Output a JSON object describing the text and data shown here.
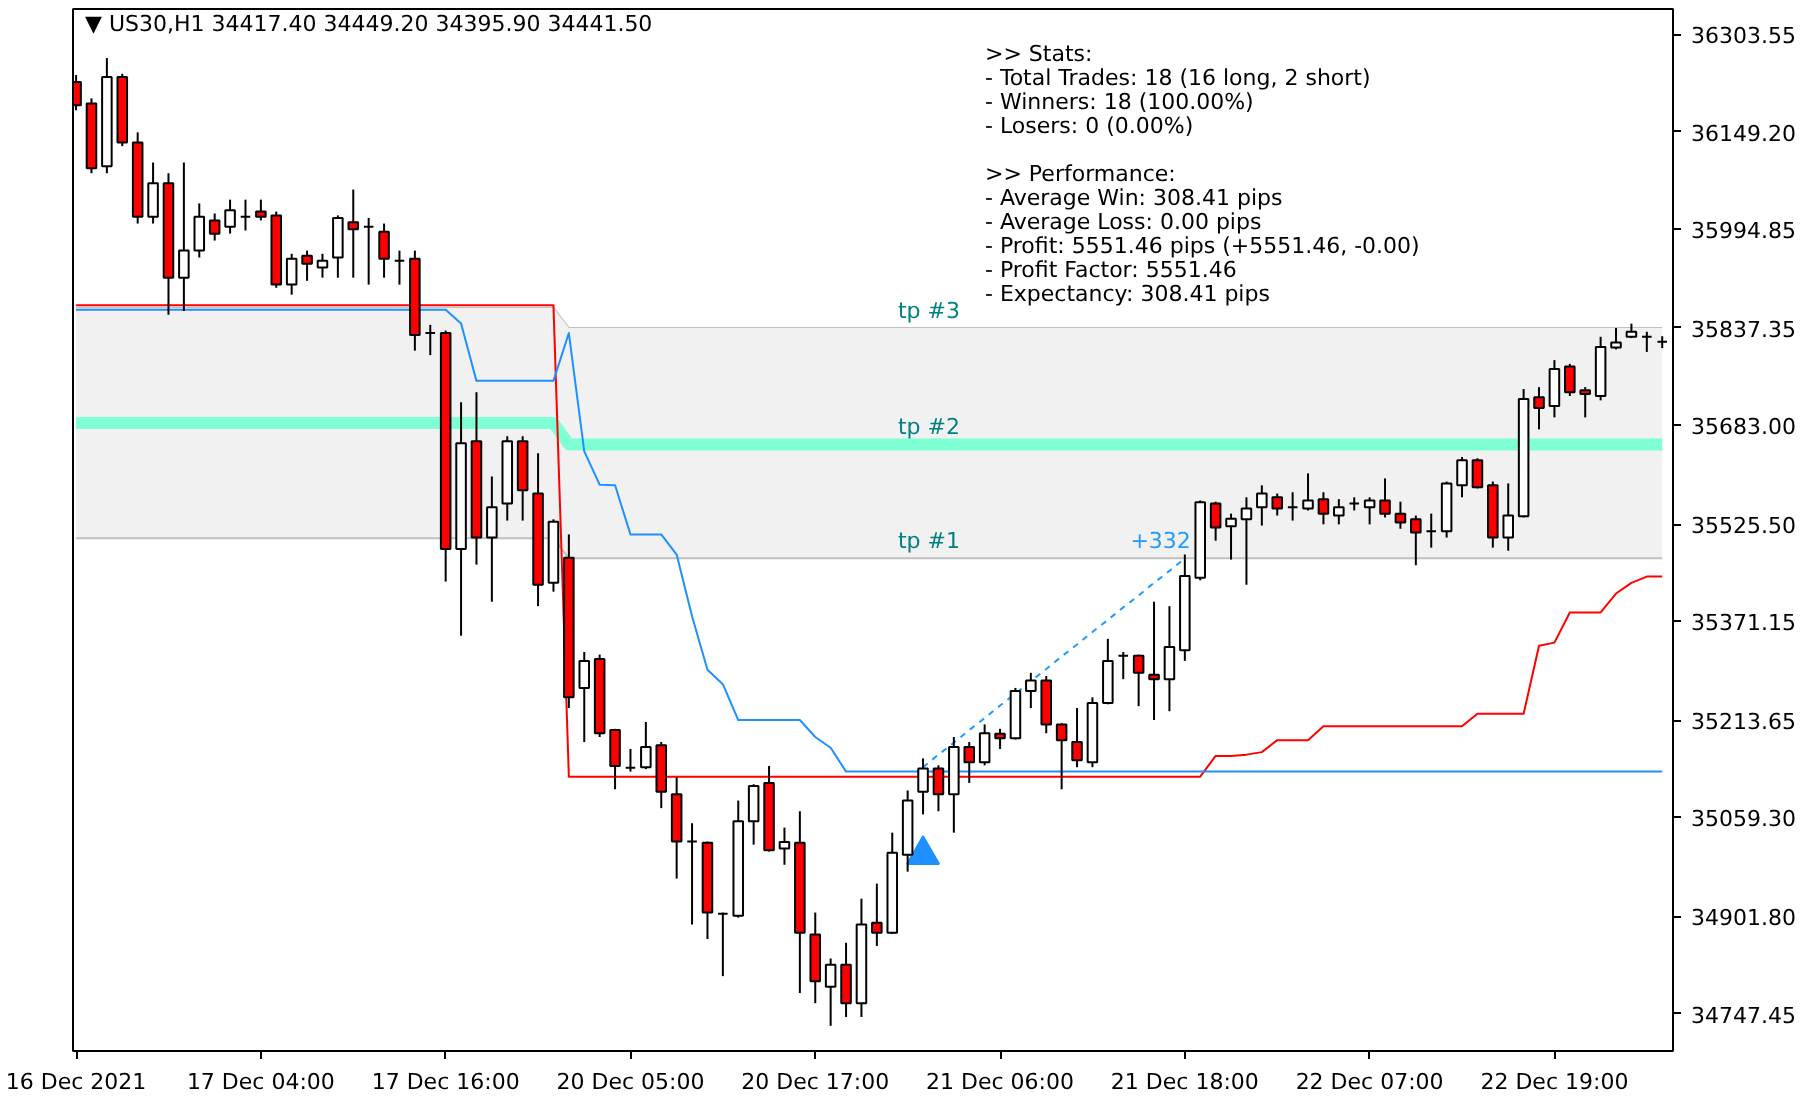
{
  "chart_data": {
    "type": "candlestick",
    "title": "▼ US30,H1  34417.40 34449.20 34395.90 34441.50",
    "categories": [
      "16 Dec 2021",
      null,
      null,
      null,
      null,
      null,
      null,
      null,
      null,
      null,
      null,
      null,
      "17 Dec 04:00",
      null,
      null,
      null,
      null,
      null,
      null,
      null,
      null,
      null,
      null,
      null,
      "17 Dec 16:00",
      null,
      null,
      null,
      null,
      null,
      null,
      null,
      null,
      null,
      null,
      null,
      "20 Dec 05:00",
      null,
      null,
      null,
      null,
      null,
      null,
      null,
      null,
      null,
      null,
      null,
      "20 Dec 17:00",
      null,
      null,
      null,
      null,
      null,
      null,
      null,
      null,
      null,
      null,
      null,
      "21 Dec 06:00",
      null,
      null,
      null,
      null,
      null,
      null,
      null,
      null,
      null,
      null,
      null,
      "21 Dec 18:00",
      null,
      null,
      null,
      null,
      null,
      null,
      null,
      null,
      null,
      null,
      null,
      "22 Dec 07:00",
      null,
      null,
      null,
      null,
      null,
      null,
      null,
      null,
      null,
      null,
      null,
      "22 Dec 19:00",
      null,
      null,
      null,
      null,
      null,
      null,
      null
    ],
    "ohlc": [
      [
        36228,
        36239,
        36183,
        36191
      ],
      [
        36194,
        36202,
        36083,
        36091
      ],
      [
        36094,
        36266,
        36083,
        36236
      ],
      [
        36236,
        36241,
        36126,
        36132
      ],
      [
        36132,
        36148,
        36003,
        36014
      ],
      [
        36014,
        36100,
        36003,
        36067
      ],
      [
        36067,
        36083,
        35858,
        35917
      ],
      [
        35917,
        36100,
        35864,
        35960
      ],
      [
        35960,
        36035,
        35949,
        36014
      ],
      [
        36008,
        36019,
        35976,
        35987
      ],
      [
        35998,
        36041,
        35987,
        36024
      ],
      [
        36014,
        36041,
        35992,
        36014
      ],
      [
        36022,
        36041,
        36008,
        36014
      ],
      [
        36016,
        36022,
        35901,
        35906
      ],
      [
        35906,
        35955,
        35890,
        35947
      ],
      [
        35952,
        35960,
        35912,
        35939
      ],
      [
        35933,
        35955,
        35917,
        35944
      ],
      [
        35949,
        36016,
        35917,
        36012
      ],
      [
        36005,
        36057,
        35917,
        35994
      ],
      [
        35998,
        36012,
        35906,
        35998
      ],
      [
        35990,
        36003,
        35917,
        35947
      ],
      [
        35944,
        35960,
        35906,
        35944
      ],
      [
        35947,
        35960,
        35801,
        35826
      ],
      [
        35829,
        35842,
        35794,
        35829
      ],
      [
        35829,
        35833,
        35434,
        35486
      ],
      [
        35486,
        35719,
        35348,
        35654
      ],
      [
        35657,
        35735,
        35461,
        35504
      ],
      [
        35504,
        35601,
        35402,
        35552
      ],
      [
        35558,
        35665,
        35531,
        35657
      ],
      [
        35657,
        35665,
        35531,
        35579
      ],
      [
        35574,
        35638,
        35395,
        35429
      ],
      [
        35432,
        35533,
        35418,
        35529
      ],
      [
        35472,
        35509,
        35233,
        35250
      ],
      [
        35265,
        35322,
        35179,
        35308
      ],
      [
        35311,
        35318,
        35187,
        35193
      ],
      [
        35198,
        35200,
        35104,
        35141
      ],
      [
        35138,
        35168,
        35132,
        35138
      ],
      [
        35139,
        35211,
        35136,
        35171
      ],
      [
        35174,
        35179,
        35074,
        35100
      ],
      [
        35096,
        35123,
        34962,
        35021
      ],
      [
        35021,
        35050,
        34889,
        35021
      ],
      [
        35019,
        35021,
        34866,
        34908
      ],
      [
        34906,
        34908,
        34807,
        34906
      ],
      [
        34903,
        35086,
        34900,
        35053
      ],
      [
        35053,
        35112,
        35016,
        35109
      ],
      [
        35114,
        35141,
        35005,
        35007
      ],
      [
        35010,
        35043,
        34984,
        35020
      ],
      [
        35019,
        35069,
        34780,
        34876
      ],
      [
        34873,
        34908,
        34764,
        34799
      ],
      [
        34790,
        34835,
        34728,
        34825
      ],
      [
        34825,
        34860,
        34742,
        34764
      ],
      [
        34764,
        34930,
        34742,
        34889
      ],
      [
        34892,
        34954,
        34855,
        34876
      ],
      [
        34876,
        35035,
        34874,
        35003
      ],
      [
        35000,
        35102,
        34973,
        35086
      ],
      [
        35100,
        35153,
        35064,
        35137
      ],
      [
        35137,
        35142,
        35069,
        35096
      ],
      [
        35096,
        35187,
        35035,
        35171
      ],
      [
        35171,
        35179,
        35114,
        35147
      ],
      [
        35147,
        35207,
        35142,
        35193
      ],
      [
        35192,
        35200,
        35168,
        35185
      ],
      [
        35185,
        35265,
        35183,
        35260
      ],
      [
        35260,
        35289,
        35233,
        35277
      ],
      [
        35277,
        35284,
        35193,
        35207
      ],
      [
        35207,
        35209,
        35104,
        35182
      ],
      [
        35179,
        35233,
        35139,
        35150
      ],
      [
        35147,
        35250,
        35139,
        35241
      ],
      [
        35241,
        35343,
        35239,
        35308
      ],
      [
        35316,
        35322,
        35279,
        35316
      ],
      [
        35316,
        35318,
        35236,
        35289
      ],
      [
        35286,
        35402,
        35214,
        35279
      ],
      [
        35279,
        35395,
        35228,
        35330
      ],
      [
        35325,
        35477,
        35308,
        35443
      ],
      [
        35440,
        35563,
        35436,
        35560
      ],
      [
        35558,
        35561,
        35499,
        35520
      ],
      [
        35522,
        35542,
        35469,
        35534
      ],
      [
        35533,
        35568,
        35429,
        35550
      ],
      [
        35552,
        35587,
        35523,
        35574
      ],
      [
        35568,
        35574,
        35539,
        35550
      ],
      [
        35552,
        35576,
        35531,
        35552
      ],
      [
        35550,
        35606,
        35547,
        35563
      ],
      [
        35565,
        35576,
        35525,
        35542
      ],
      [
        35539,
        35565,
        35525,
        35552
      ],
      [
        35558,
        35568,
        35547,
        35558
      ],
      [
        35552,
        35568,
        35525,
        35563
      ],
      [
        35563,
        35598,
        35536,
        35542
      ],
      [
        35542,
        35561,
        35518,
        35528
      ],
      [
        35533,
        35539,
        35460,
        35512
      ],
      [
        35514,
        35542,
        35488,
        35514
      ],
      [
        35514,
        35593,
        35504,
        35590
      ],
      [
        35587,
        35632,
        35568,
        35627
      ],
      [
        35627,
        35630,
        35582,
        35584
      ],
      [
        35587,
        35593,
        35488,
        35504
      ],
      [
        35504,
        35590,
        35483,
        35539
      ],
      [
        35538,
        35740,
        35536,
        35724
      ],
      [
        35727,
        35743,
        35676,
        35710
      ],
      [
        35713,
        35786,
        35695,
        35772
      ],
      [
        35776,
        35780,
        35729,
        35735
      ],
      [
        35738,
        35743,
        35695,
        35732
      ],
      [
        35729,
        35823,
        35722,
        35807
      ],
      [
        35806,
        35837,
        35803,
        35814
      ],
      [
        35823,
        35844,
        35821,
        35831
      ],
      [
        35823,
        35831,
        35799,
        35823
      ],
      [
        35815,
        35824,
        35805,
        35815
      ]
    ],
    "colors": [
      "#ff0000",
      "#ff0000",
      "#ffffff",
      "#ff0000",
      "#ff0000",
      "#ffffff",
      "#ff0000",
      "#ffffff",
      "#ffffff",
      "#ff0000",
      "#ffffff",
      "#000000",
      "#ff0000",
      "#ff0000",
      "#ffffff",
      "#ff0000",
      "#ffffff",
      "#ffffff",
      "#ff0000",
      "#000000",
      "#ff0000",
      "#000000",
      "#ff0000",
      "#000000",
      "#ff0000",
      "#ffffff",
      "#ff0000",
      "#ffffff",
      "#ffffff",
      "#ff0000",
      "#ff0000",
      "#ffffff",
      "#ff0000",
      "#ffffff",
      "#ff0000",
      "#ff0000",
      "#000000",
      "#ffffff",
      "#ff0000",
      "#ff0000",
      "#000000",
      "#ff0000",
      "#000000",
      "#ffffff",
      "#ffffff",
      "#ff0000",
      "#ffffff",
      "#ff0000",
      "#ff0000",
      "#ffffff",
      "#ff0000",
      "#ffffff",
      "#ff0000",
      "#ffffff",
      "#ffffff",
      "#ffffff",
      "#ff0000",
      "#ffffff",
      "#ff0000",
      "#ffffff",
      "#ff0000",
      "#ffffff",
      "#ffffff",
      "#ff0000",
      "#ff0000",
      "#ff0000",
      "#ffffff",
      "#ffffff",
      "#000000",
      "#ff0000",
      "#ff0000",
      "#ffffff",
      "#ffffff",
      "#ffffff",
      "#ff0000",
      "#ffffff",
      "#ffffff",
      "#ffffff",
      "#ff0000",
      "#000000",
      "#ffffff",
      "#ff0000",
      "#ffffff",
      "#000000",
      "#ffffff",
      "#ff0000",
      "#ff0000",
      "#ff0000",
      "#000000",
      "#ffffff",
      "#ffffff",
      "#ff0000",
      "#ff0000",
      "#ffffff",
      "#ffffff",
      "#ff0000",
      "#ffffff",
      "#ff0000",
      "#ff0000",
      "#ffffff",
      "#ffffff",
      "#ffffff",
      "#000000",
      "#000000"
    ],
    "ylim": [
      34688,
      36344
    ],
    "yticks": [
      {
        "value": 36303.55,
        "label": "36303.55"
      },
      {
        "value": 36149.2,
        "label": "36149.20"
      },
      {
        "value": 35994.85,
        "label": "35994.85"
      },
      {
        "value": 35837.35,
        "label": "35837.35"
      },
      {
        "value": 35683,
        "label": "35683.00"
      },
      {
        "value": 35525.5,
        "label": "35525.50"
      },
      {
        "value": 35371.15,
        "label": "35371.15"
      },
      {
        "value": 35213.65,
        "label": "35213.65"
      },
      {
        "value": 35059.3,
        "label": "35059.30"
      },
      {
        "value": 34901.8,
        "label": "34901.80"
      },
      {
        "value": 34747.45,
        "label": "34747.45"
      }
    ],
    "series": [
      {
        "type": "line",
        "name": "tp #3",
        "color": "#c0c0c0",
        "values": [
          35869,
          35869,
          35869,
          35869,
          35869,
          35869,
          35869,
          35869,
          35869,
          35869,
          35869,
          35869,
          35869,
          35869,
          35869,
          35869,
          35869,
          35869,
          35869,
          35869,
          35869,
          35869,
          35869,
          35869,
          35869,
          35869,
          35869,
          35869,
          35869,
          35869,
          35869,
          35869,
          35837,
          35837,
          35837,
          35837,
          35837,
          35837,
          35837,
          35837,
          35837,
          35837,
          35837,
          35837,
          35837,
          35837,
          35837,
          35837,
          35837,
          35837,
          35837,
          35837,
          35837,
          35837,
          35837,
          35837,
          35837,
          35837,
          35837,
          35837,
          35837,
          35837,
          35837,
          35837,
          35837,
          35837,
          35837,
          35837,
          35837,
          35837,
          35837,
          35837,
          35837,
          35837,
          35837,
          35837,
          35837,
          35837,
          35837,
          35837,
          35837,
          35837,
          35837,
          35837,
          35837,
          35837,
          35837,
          35837,
          35837,
          35837,
          35837,
          35837,
          35837,
          35837,
          35837,
          35837,
          35837,
          35837,
          35837,
          35837,
          35837,
          35837,
          35837,
          35837
        ]
      },
      {
        "type": "line",
        "name": "tp #2",
        "color": "#7fffd4",
        "values": [
          35686,
          35686,
          35686,
          35686,
          35686,
          35686,
          35686,
          35686,
          35686,
          35686,
          35686,
          35686,
          35686,
          35686,
          35686,
          35686,
          35686,
          35686,
          35686,
          35686,
          35686,
          35686,
          35686,
          35686,
          35686,
          35686,
          35686,
          35686,
          35686,
          35686,
          35686,
          35686,
          35652,
          35652,
          35652,
          35652,
          35652,
          35652,
          35652,
          35652,
          35652,
          35652,
          35652,
          35652,
          35652,
          35652,
          35652,
          35652,
          35652,
          35652,
          35652,
          35652,
          35652,
          35652,
          35652,
          35652,
          35652,
          35652,
          35652,
          35652,
          35652,
          35652,
          35652,
          35652,
          35652,
          35652,
          35652,
          35652,
          35652,
          35652,
          35652,
          35652,
          35652,
          35652,
          35652,
          35652,
          35652,
          35652,
          35652,
          35652,
          35652,
          35652,
          35652,
          35652,
          35652,
          35652,
          35652,
          35652,
          35652,
          35652,
          35652,
          35652,
          35652,
          35652,
          35652,
          35652,
          35652,
          35652,
          35652,
          35652,
          35652,
          35652,
          35652,
          35652
        ],
        "lower": [
          35503,
          35503,
          35503,
          35503,
          35503,
          35503,
          35503,
          35503,
          35503,
          35503,
          35503,
          35503,
          35503,
          35503,
          35503,
          35503,
          35503,
          35503,
          35503,
          35503,
          35503,
          35503,
          35503,
          35503,
          35503,
          35503,
          35503,
          35503,
          35503,
          35503,
          35503,
          35503,
          35471,
          35471,
          35471,
          35471,
          35471,
          35471,
          35471,
          35471,
          35471,
          35471,
          35471,
          35471,
          35471,
          35471,
          35471,
          35471,
          35471,
          35471,
          35471,
          35471,
          35471,
          35471,
          35471,
          35471,
          35471,
          35471,
          35471,
          35471,
          35471,
          35471,
          35471,
          35471,
          35471,
          35471,
          35471,
          35471,
          35471,
          35471,
          35471,
          35471,
          35471,
          35471,
          35471,
          35471,
          35471,
          35471,
          35471,
          35471,
          35471,
          35471,
          35471,
          35471,
          35471,
          35471,
          35471,
          35471,
          35471,
          35471,
          35471,
          35471,
          35471,
          35471,
          35471,
          35471,
          35471,
          35471,
          35471,
          35471,
          35471,
          35471,
          35471,
          35471
        ],
        "upper": [
          35869,
          35869,
          35869,
          35869,
          35869,
          35869,
          35869,
          35869,
          35869,
          35869,
          35869,
          35869,
          35869,
          35869,
          35869,
          35869,
          35869,
          35869,
          35869,
          35869,
          35869,
          35869,
          35869,
          35869,
          35869,
          35869,
          35869,
          35869,
          35869,
          35869,
          35869,
          35869,
          35837,
          35837,
          35837,
          35837,
          35837,
          35837,
          35837,
          35837,
          35837,
          35837,
          35837,
          35837,
          35837,
          35837,
          35837,
          35837,
          35837,
          35837,
          35837,
          35837,
          35837,
          35837,
          35837,
          35837,
          35837,
          35837,
          35837,
          35837,
          35837,
          35837,
          35837,
          35837,
          35837,
          35837,
          35837,
          35837,
          35837,
          35837,
          35837,
          35837,
          35837,
          35837,
          35837,
          35837,
          35837,
          35837,
          35837,
          35837,
          35837,
          35837,
          35837,
          35837,
          35837,
          35837,
          35837,
          35837,
          35837,
          35837,
          35837,
          35837,
          35837,
          35837,
          35837,
          35837,
          35837,
          35837,
          35837,
          35837,
          35837,
          35837,
          35837,
          35837
        ]
      },
      {
        "type": "line",
        "name": "tp #1",
        "color": "#c0c0c0",
        "values": [
          35503,
          35503,
          35503,
          35503,
          35503,
          35503,
          35503,
          35503,
          35503,
          35503,
          35503,
          35503,
          35503,
          35503,
          35503,
          35503,
          35503,
          35503,
          35503,
          35503,
          35503,
          35503,
          35503,
          35503,
          35503,
          35503,
          35503,
          35503,
          35503,
          35503,
          35503,
          35503,
          35471,
          35471,
          35471,
          35471,
          35471,
          35471,
          35471,
          35471,
          35471,
          35471,
          35471,
          35471,
          35471,
          35471,
          35471,
          35471,
          35471,
          35471,
          35471,
          35471,
          35471,
          35471,
          35471,
          35471,
          35471,
          35471,
          35471,
          35471,
          35471,
          35471,
          35471,
          35471,
          35471,
          35471,
          35471,
          35471,
          35471,
          35471,
          35471,
          35471,
          35471,
          35471,
          35471,
          35471,
          35471,
          35471,
          35471,
          35471,
          35471,
          35471,
          35471,
          35471,
          35471,
          35471,
          35471,
          35471,
          35471,
          35471,
          35471,
          35471,
          35471,
          35471,
          35471,
          35471,
          35471,
          35471,
          35471,
          35471,
          35471,
          35471,
          35471,
          35471
        ]
      },
      {
        "type": "line",
        "color": "#ff0000",
        "values": [
          35873,
          35873,
          35873,
          35873,
          35873,
          35873,
          35873,
          35873,
          35873,
          35873,
          35873,
          35873,
          35873,
          35873,
          35873,
          35873,
          35873,
          35873,
          35873,
          35873,
          35873,
          35873,
          35873,
          35873,
          35873,
          35873,
          35873,
          35873,
          35873,
          35873,
          35873,
          35873,
          35124,
          35124,
          35124,
          35124,
          35124,
          35124,
          35124,
          35124,
          35124,
          35124,
          35124,
          35124,
          35124,
          35124,
          35124,
          35124,
          35124,
          35124,
          35124,
          35124,
          35124,
          35124,
          35124,
          35124,
          35124,
          35124,
          35124,
          35124,
          35124,
          35124,
          35124,
          35124,
          35124,
          35124,
          35124,
          35124,
          35124,
          35124,
          35124,
          35124,
          35124,
          35124,
          35157,
          35157,
          35159,
          35163,
          35182,
          35182,
          35182,
          35204,
          35204,
          35204,
          35204,
          35204,
          35204,
          35204,
          35204,
          35204,
          35204,
          35224,
          35224,
          35224,
          35224,
          35332,
          35337,
          35385,
          35385,
          35385,
          35415,
          35432,
          35442,
          35442
        ]
      },
      {
        "type": "line",
        "color": "#1e90ff",
        "values": [
          35866,
          35866,
          35866,
          35866,
          35866,
          35866,
          35866,
          35866,
          35866,
          35866,
          35866,
          35866,
          35866,
          35866,
          35866,
          35866,
          35866,
          35866,
          35866,
          35866,
          35866,
          35866,
          35866,
          35866,
          35866,
          35844,
          35753,
          35753,
          35753,
          35753,
          35753,
          35753,
          35829,
          35641,
          35588,
          35587,
          35509,
          35509,
          35509,
          35477,
          35379,
          35294,
          35271,
          35214,
          35214,
          35214,
          35214,
          35214,
          35187,
          35170,
          35132,
          35132,
          35132,
          35132,
          35132,
          35132,
          35132,
          35132,
          35132,
          35132,
          35132,
          35132,
          35132,
          35132,
          35132,
          35132,
          35132,
          35132,
          35132,
          35132,
          35132,
          35132,
          35132,
          35132,
          35132,
          35132,
          35132,
          35132,
          35132,
          35132,
          35132,
          35132,
          35132,
          35132,
          35132,
          35132,
          35132,
          35132,
          35132,
          35132,
          35132,
          35132,
          35132,
          35132,
          35132,
          35132,
          35132,
          35132,
          35132,
          35132,
          35132,
          35132,
          35132,
          35132
        ]
      },
      {
        "type": "line",
        "color": "#1e9bff",
        "line_style": "dashed",
        "values": [
          null,
          null,
          null,
          null,
          null,
          null,
          null,
          null,
          null,
          null,
          null,
          null,
          null,
          null,
          null,
          null,
          null,
          null,
          null,
          null,
          null,
          null,
          null,
          null,
          null,
          null,
          null,
          null,
          null,
          null,
          null,
          null,
          null,
          null,
          null,
          null,
          null,
          null,
          null,
          null,
          null,
          null,
          null,
          null,
          null,
          null,
          null,
          null,
          null,
          null,
          null,
          null,
          null,
          null,
          null,
          35139,
          35159,
          35178,
          35198,
          35217,
          35237,
          35256,
          35276,
          35295,
          35315,
          35334,
          35354,
          35373,
          35393,
          35412,
          35432,
          35451,
          35471,
          null,
          null,
          null,
          null,
          null,
          null,
          null,
          null,
          null,
          null,
          null,
          null,
          null,
          null,
          null,
          null,
          null,
          null,
          null,
          null,
          null,
          null,
          null,
          null,
          null,
          null,
          null,
          null,
          null,
          null,
          null
        ]
      },
      {
        "type": "scatter",
        "color": "#1e90ff",
        "marker": "triangle",
        "values": [
          null,
          null,
          null,
          null,
          null,
          null,
          null,
          null,
          null,
          null,
          null,
          null,
          null,
          null,
          null,
          null,
          null,
          null,
          null,
          null,
          null,
          null,
          null,
          null,
          null,
          null,
          null,
          null,
          null,
          null,
          null,
          null,
          null,
          null,
          null,
          null,
          null,
          null,
          null,
          null,
          null,
          null,
          null,
          null,
          null,
          null,
          null,
          null,
          null,
          null,
          null,
          null,
          null,
          null,
          null,
          35000,
          null,
          null,
          null,
          null,
          null,
          null,
          null,
          null,
          null,
          null,
          null,
          null,
          null,
          null,
          null,
          null,
          null,
          null,
          null,
          null,
          null,
          null,
          null,
          null,
          null,
          null,
          null,
          null,
          null,
          null,
          null,
          null,
          null,
          null,
          null,
          null,
          null,
          null,
          null,
          null,
          null,
          null,
          null,
          null,
          null,
          null,
          null,
          null
        ]
      }
    ],
    "annotations": [
      ">> Stats:",
      "- Total Trades: 18 (16 long, 2 short)",
      "- Winners: 18 (100.00%)",
      "- Losers: 0 (0.00%)",
      ">> Performance:",
      "- Average Win: 308.41 pips",
      "- Average Loss: 0.00 pips",
      "- Profit: 5551.46 pips (+5551.46, -0.00)",
      "- Profit Factor: 5551.46",
      "- Expectancy: 308.41 pips",
      {
        "text": "+332",
        "x": "21 Dec 18:00",
        "y": 35471
      }
    ]
  }
}
